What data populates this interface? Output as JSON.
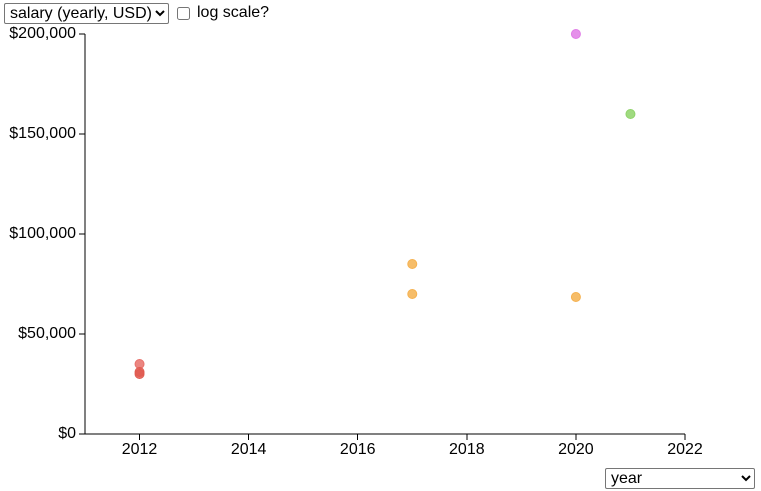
{
  "controls": {
    "y_axis_select": {
      "selected": "salary (yearly, USD)",
      "options": [
        "salary (yearly, USD)"
      ]
    },
    "log_scale_label": "log scale?",
    "log_scale_checked": false,
    "x_axis_select": {
      "selected": "year",
      "options": [
        "year"
      ]
    }
  },
  "chart_data": {
    "type": "scatter",
    "title": "",
    "xlabel": "",
    "ylabel": "",
    "xlim": [
      2011,
      2022
    ],
    "ylim": [
      0,
      200000
    ],
    "log_scale": false,
    "grid": false,
    "x_ticks": [
      2012,
      2014,
      2016,
      2018,
      2020,
      2022
    ],
    "x_tick_labels": [
      "2012",
      "2014",
      "2016",
      "2018",
      "2020",
      "2022"
    ],
    "y_ticks": [
      0,
      50000,
      100000,
      150000,
      200000
    ],
    "y_tick_labels": [
      "$0",
      "$50,000",
      "$100,000",
      "$150,000",
      "$200,000"
    ],
    "points": [
      {
        "x": 2012,
        "y": 35000,
        "color": "#e8716b"
      },
      {
        "x": 2012,
        "y": 31000,
        "color": "#e05b50"
      },
      {
        "x": 2012,
        "y": 30000,
        "color": "#e05b50"
      },
      {
        "x": 2017,
        "y": 85000,
        "color": "#f5b14f"
      },
      {
        "x": 2017,
        "y": 70000,
        "color": "#f5b14f"
      },
      {
        "x": 2020,
        "y": 68500,
        "color": "#f5b14f"
      },
      {
        "x": 2020,
        "y": 200000,
        "color": "#e07de6"
      },
      {
        "x": 2021,
        "y": 160000,
        "color": "#8fd36a"
      }
    ]
  }
}
